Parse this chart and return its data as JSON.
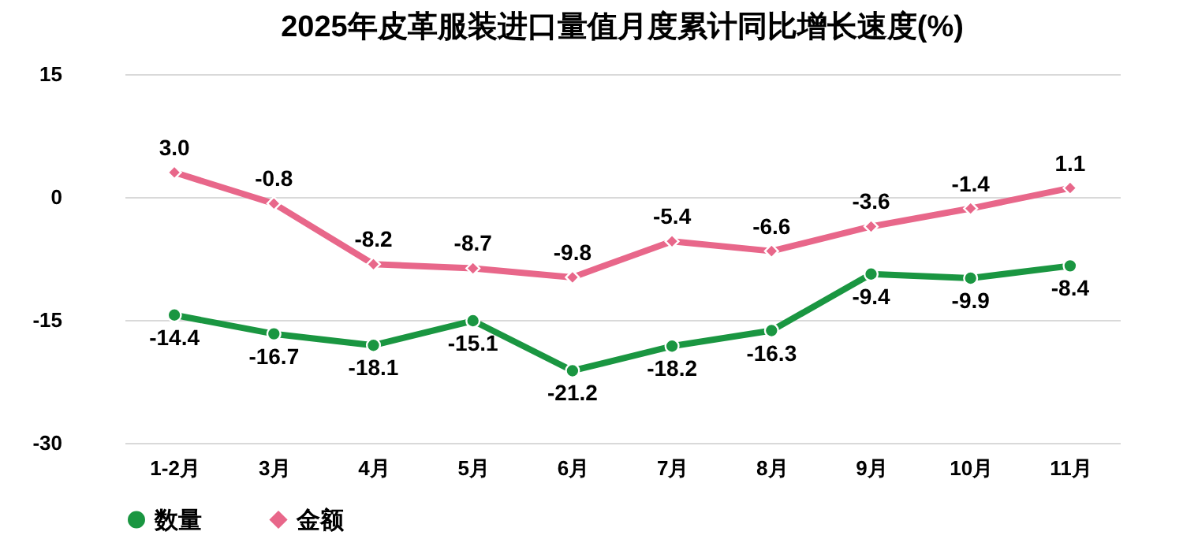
{
  "chart_data": {
    "type": "line",
    "title": "2025年皮革服装进口量值月度累计同比增长速度(%)",
    "categories": [
      "1-2月",
      "3月",
      "4月",
      "5月",
      "6月",
      "7月",
      "8月",
      "9月",
      "10月",
      "11月"
    ],
    "series": [
      {
        "name": "数量",
        "color": "#1a9641",
        "marker": "circle",
        "values": [
          -14.4,
          -16.7,
          -18.1,
          -15.1,
          -21.2,
          -18.2,
          -16.3,
          -9.4,
          -9.9,
          -8.4
        ],
        "value_labels": [
          "-14.4",
          "-16.7",
          "-18.1",
          "-15.1",
          "-21.2",
          "-18.2",
          "-16.3",
          "-9.4",
          "-9.9",
          "-8.4"
        ]
      },
      {
        "name": "金额",
        "color": "#e8678a",
        "marker": "diamond",
        "values": [
          3.0,
          -0.8,
          -8.2,
          -8.7,
          -9.8,
          -5.4,
          -6.6,
          -3.6,
          -1.4,
          1.1
        ],
        "value_labels": [
          "3.0",
          "-0.8",
          "-8.2",
          "-8.7",
          "-9.8",
          "-5.4",
          "-6.6",
          "-3.6",
          "-1.4",
          "1.1"
        ]
      }
    ],
    "ylim": [
      -30,
      15
    ],
    "yticks": [
      -30,
      -15,
      0,
      15
    ],
    "grid": "y",
    "legend": "bottom",
    "line_style": "solid"
  }
}
